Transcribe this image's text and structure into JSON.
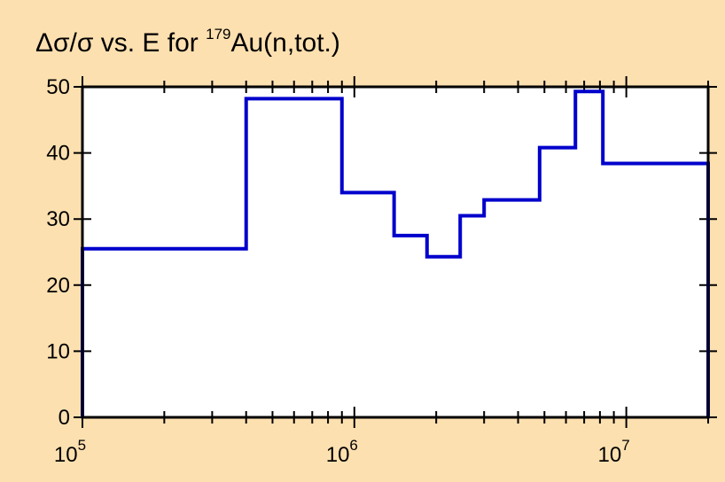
{
  "chart_data": {
    "type": "line",
    "style": "step",
    "title": {
      "prefix": "Δσ/σ vs. E for ",
      "superscript": "179",
      "suffix": "Au(n,tot.)"
    },
    "xlabel": "",
    "ylabel": "",
    "x_scale": "log",
    "xlim": [
      100000,
      20000000
    ],
    "ylim": [
      0,
      50
    ],
    "grid": false,
    "y_ticks": [
      0,
      10,
      20,
      30,
      40,
      50
    ],
    "x_major_ticks": [
      {
        "value": 100000,
        "base": "10",
        "exp": "5"
      },
      {
        "value": 1000000,
        "base": "10",
        "exp": "6"
      },
      {
        "value": 10000000,
        "base": "10",
        "exp": "7"
      }
    ],
    "series": [
      {
        "color": "#0000cc",
        "bins": [
          {
            "x0": 100000,
            "x1": 400000,
            "y": 25.5
          },
          {
            "x0": 400000,
            "x1": 900000,
            "y": 48.2
          },
          {
            "x0": 900000,
            "x1": 1400000,
            "y": 34.0
          },
          {
            "x0": 1400000,
            "x1": 1850000,
            "y": 27.5
          },
          {
            "x0": 1850000,
            "x1": 2450000,
            "y": 24.3
          },
          {
            "x0": 2450000,
            "x1": 3000000,
            "y": 30.5
          },
          {
            "x0": 3000000,
            "x1": 4800000,
            "y": 32.9
          },
          {
            "x0": 4800000,
            "x1": 6500000,
            "y": 40.8
          },
          {
            "x0": 6500000,
            "x1": 8200000,
            "y": 49.3
          },
          {
            "x0": 8200000,
            "x1": 20000000,
            "y": 38.4
          }
        ]
      }
    ]
  }
}
